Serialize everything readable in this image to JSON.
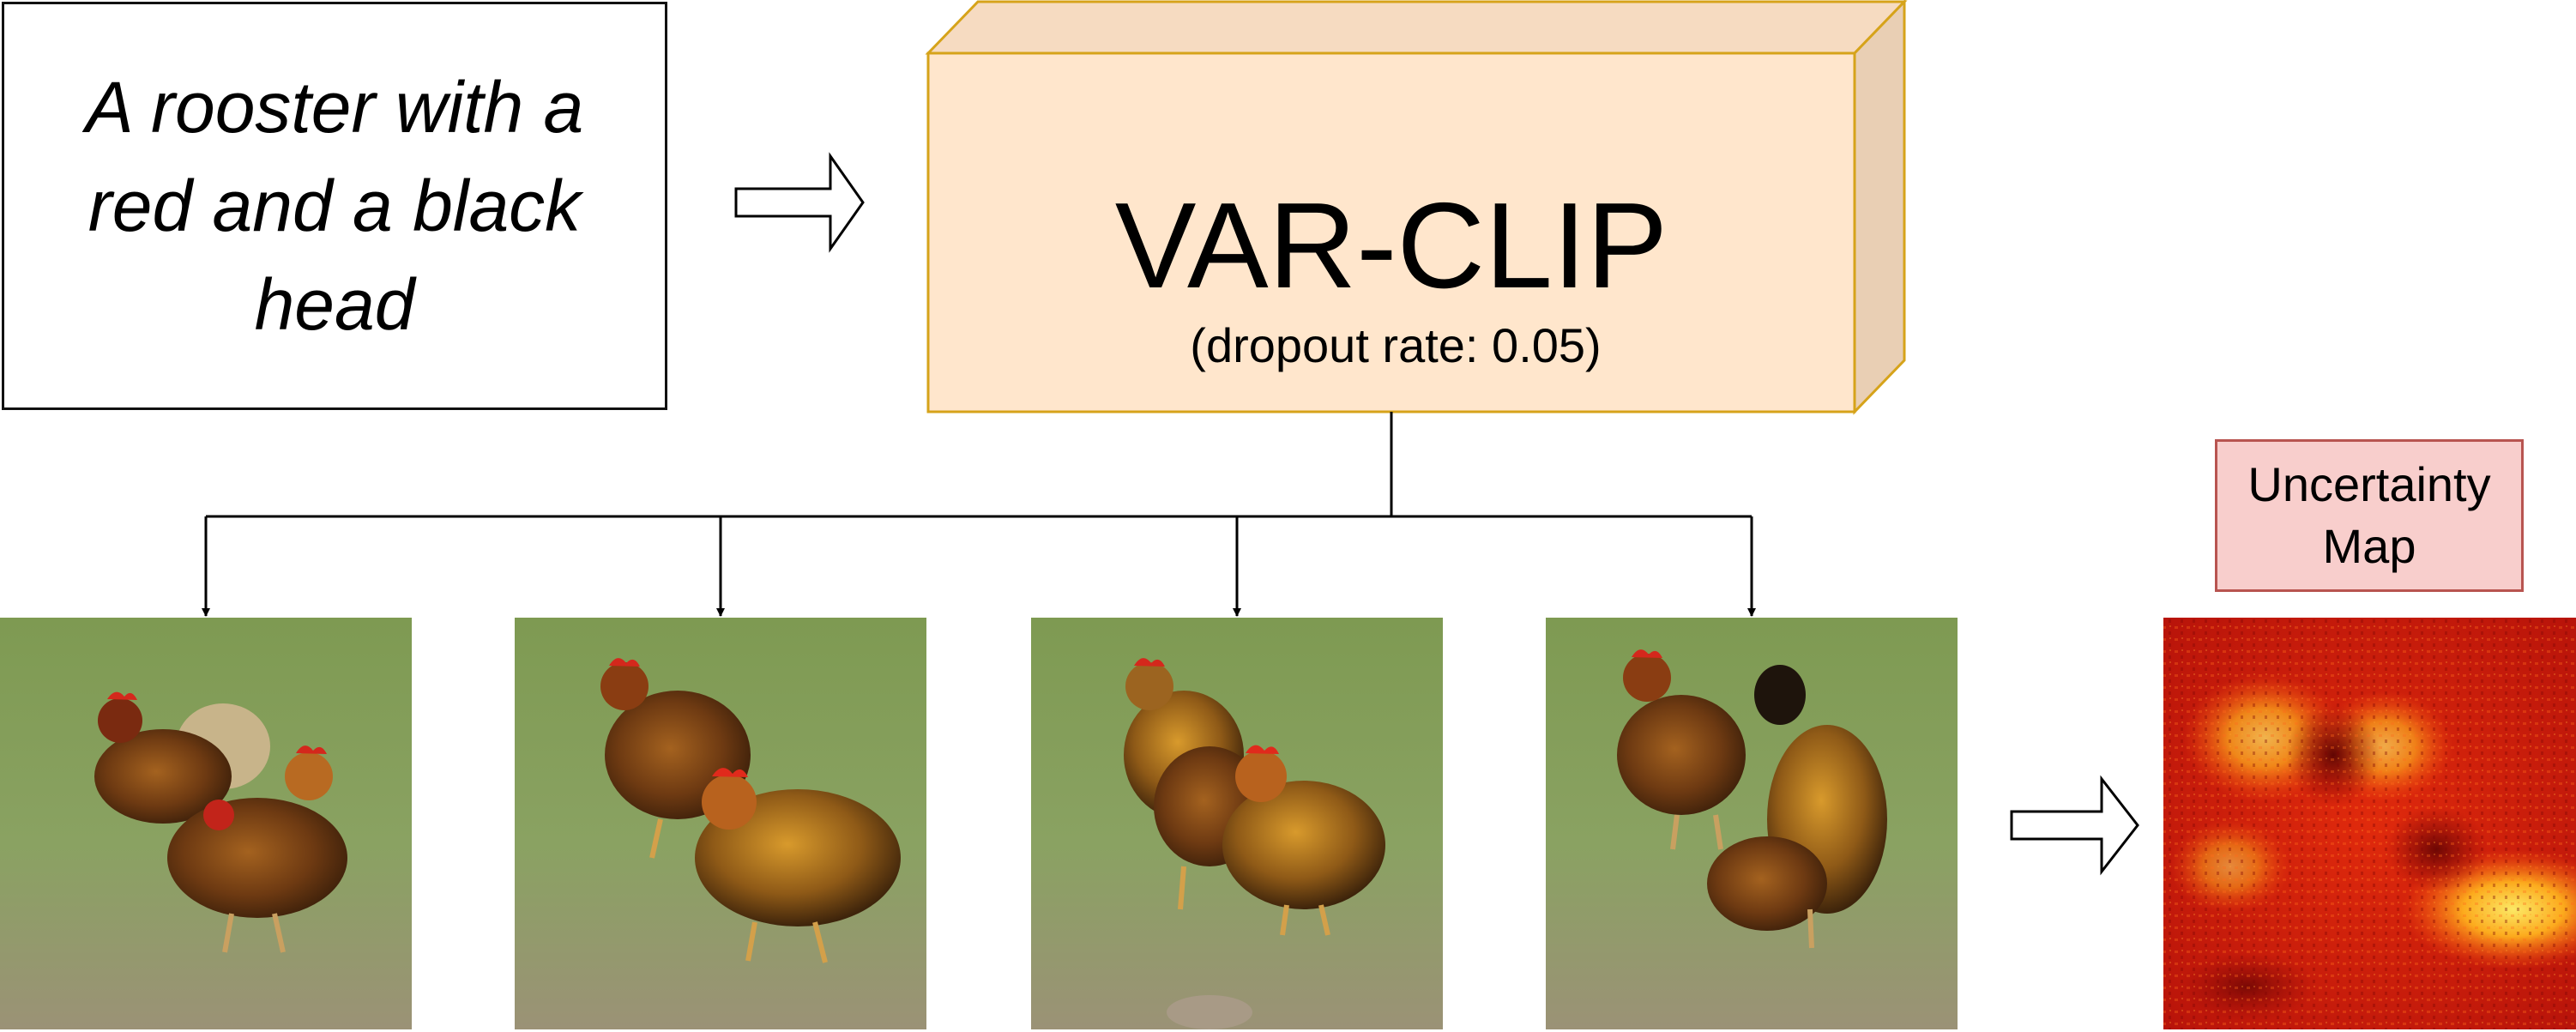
{
  "prompt": {
    "text": "A rooster with a red and a black head"
  },
  "model": {
    "name": "VAR-CLIP",
    "detail": "(dropout rate: 0.05)"
  },
  "uncertainty": {
    "label": "Uncertainty Map"
  },
  "samples": [
    {
      "name": "sample-image-1"
    },
    {
      "name": "sample-image-2"
    },
    {
      "name": "sample-image-3"
    },
    {
      "name": "sample-image-4"
    }
  ],
  "colors": {
    "model_front": "#ffe6cc",
    "model_top": "#f6dbc1",
    "model_side": "#e9cfb4",
    "model_border": "#d6a31a",
    "uncertainty_fill": "#f8cecc",
    "uncertainty_border": "#b85450"
  }
}
